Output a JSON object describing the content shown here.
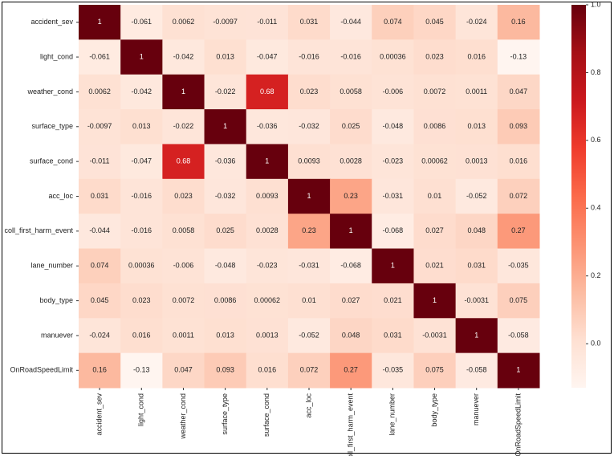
{
  "chart_data": {
    "type": "heatmap",
    "categories": [
      "accident_sev",
      "light_cond",
      "weather_cond",
      "surface_type",
      "surface_cond",
      "acc_loc",
      "coll_first_harm_event",
      "lane_number",
      "body_type",
      "manuever",
      "OnRoadSpeedLimit"
    ],
    "values": [
      [
        1,
        -0.061,
        0.0062,
        -0.0097,
        -0.011,
        0.031,
        -0.044,
        0.074,
        0.045,
        -0.024,
        0.16
      ],
      [
        -0.061,
        1,
        -0.042,
        0.013,
        -0.047,
        -0.016,
        -0.016,
        0.00036,
        0.023,
        0.016,
        -0.13
      ],
      [
        0.0062,
        -0.042,
        1,
        -0.022,
        0.68,
        0.023,
        0.0058,
        -0.006,
        0.0072,
        0.0011,
        0.047
      ],
      [
        -0.0097,
        0.013,
        -0.022,
        1,
        -0.036,
        -0.032,
        0.025,
        -0.048,
        0.0086,
        0.013,
        0.093
      ],
      [
        -0.011,
        -0.047,
        0.68,
        -0.036,
        1,
        0.0093,
        0.0028,
        -0.023,
        0.00062,
        0.0013,
        0.016
      ],
      [
        0.031,
        -0.016,
        0.023,
        -0.032,
        0.0093,
        1,
        0.23,
        -0.031,
        0.01,
        -0.052,
        0.072
      ],
      [
        -0.044,
        -0.016,
        0.0058,
        0.025,
        0.0028,
        0.23,
        1,
        -0.068,
        0.027,
        0.048,
        0.27
      ],
      [
        0.074,
        0.00036,
        -0.006,
        -0.048,
        -0.023,
        -0.031,
        -0.068,
        1,
        0.021,
        0.031,
        -0.035
      ],
      [
        0.045,
        0.023,
        0.0072,
        0.0086,
        0.00062,
        0.01,
        0.027,
        0.021,
        1,
        -0.0031,
        0.075
      ],
      [
        -0.024,
        0.016,
        0.0011,
        0.013,
        0.0013,
        -0.052,
        0.048,
        0.031,
        -0.0031,
        1,
        -0.058
      ],
      [
        0.16,
        -0.13,
        0.047,
        0.093,
        0.016,
        0.072,
        0.27,
        -0.035,
        0.075,
        -0.058,
        1
      ]
    ],
    "colormap": "Reds",
    "zlim": [
      -0.13,
      1
    ],
    "zticks": [
      {
        "value": 0,
        "label": "0.0"
      },
      0.2,
      0.4,
      0.6,
      0.8,
      {
        "value": 1,
        "label": "1.0"
      }
    ],
    "annotate": true
  }
}
